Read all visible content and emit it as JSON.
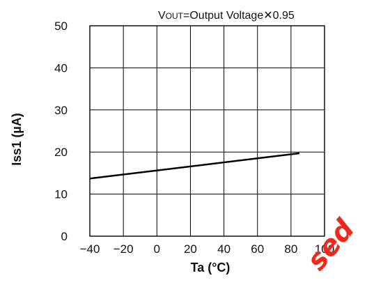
{
  "chart_data": {
    "type": "line",
    "title": "",
    "annotation": {
      "prefix": "V",
      "subscript": "OUT",
      "text": "=Output Voltage",
      "times": "✕",
      "factor": "0.95"
    },
    "xlabel": "Ta (°C)",
    "ylabel": "Iss1 (µA)",
    "xlim": [
      -40,
      100
    ],
    "ylim": [
      0,
      50
    ],
    "xticks": [
      -40,
      -20,
      0,
      20,
      40,
      60,
      80,
      100
    ],
    "xtick_labels": [
      "−40",
      "−20",
      "0",
      "20",
      "40",
      "60",
      "80",
      "100"
    ],
    "yticks": [
      0,
      10,
      20,
      30,
      40,
      50
    ],
    "ytick_labels": [
      "0",
      "10",
      "20",
      "30",
      "40",
      "50"
    ],
    "grid": true,
    "series": [
      {
        "x": [
          -40,
          85
        ],
        "y": [
          13.7,
          19.7
        ],
        "color": "#000000"
      }
    ]
  },
  "watermark": {
    "text": "sed",
    "color": "#ee2a1c"
  }
}
